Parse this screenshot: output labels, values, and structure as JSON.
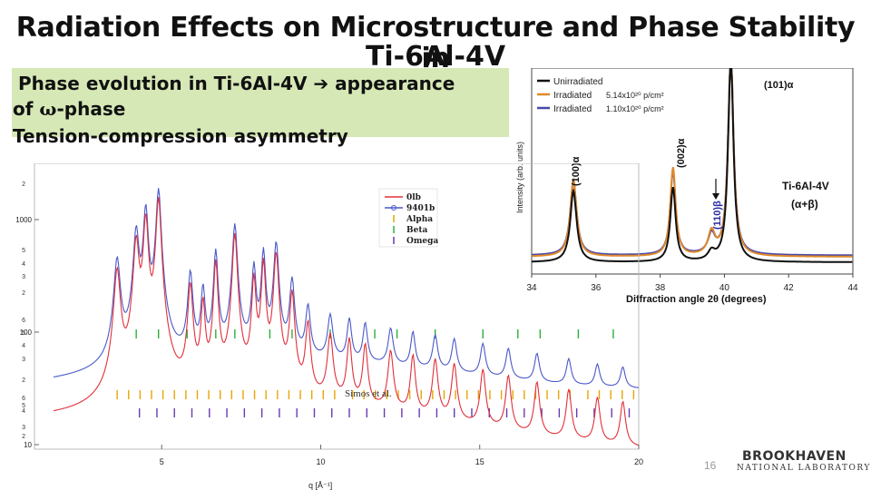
{
  "slide": {
    "title": "Radiation Effects on Microstructure and Phase Stability in",
    "title_line2": "Ti-6Al-4V",
    "callout": {
      "line1_a": "Phase evolution in Ti-6Al-4V",
      "line1_arrow": "➔",
      "line1_b": "appearance",
      "line2_a": "of",
      "line2_omega": "ω",
      "line2_b": "-phase",
      "line3": "Tension-compression asymmetry"
    },
    "page_number": "16",
    "logo_main": "BROOKHAVEN",
    "logo_sub": "NATIONAL LABORATORY",
    "colors": {
      "callout_bg": "#d6e8b6"
    }
  },
  "chart_data": [
    {
      "type": "line",
      "xlabel": "Diffraction angle 2θ (degrees)",
      "ylabel": "Intensity (arb. units)",
      "xlim": [
        34,
        44
      ],
      "x_ticks": [
        "34",
        "36",
        "38",
        "40",
        "42",
        "44"
      ],
      "legend_position": "top-left",
      "series": [
        {
          "name": "Unirradiated",
          "dose": "",
          "color": "#111111"
        },
        {
          "name": "Irradiated",
          "dose": "5.14x10²⁰ p/cm²",
          "color": "#e08a2c"
        },
        {
          "name": "Irradiated",
          "dose": "1.10x10²⁰ p/cm²",
          "color": "#4a48a8"
        }
      ],
      "peaks": [
        {
          "label": "(100)α",
          "x": 35.3
        },
        {
          "label": "(002)α",
          "x": 38.4
        },
        {
          "label": "(110)β",
          "x": 39.6
        },
        {
          "label": "(101)α",
          "x": 40.2
        }
      ],
      "annotations": [
        "Ti-6Al-4V",
        "(α+β)"
      ]
    },
    {
      "type": "line",
      "xlabel": "q [Å⁻¹]",
      "ylabel": "",
      "xlim": [
        1,
        20
      ],
      "x_ticks": [
        "5",
        "10",
        "15",
        "20"
      ],
      "y_scale": "log",
      "y_ticks": [
        "1000",
        "100",
        "10"
      ],
      "y_minor_ticks": [
        "2",
        "5",
        "4",
        "3",
        "2",
        "6",
        "5",
        "4",
        "3",
        "2",
        "6",
        "5",
        "4",
        "3",
        "2"
      ],
      "legend_position": "top-center",
      "legend": [
        {
          "name": "0lb",
          "color": "#e0303a"
        },
        {
          "name": "9401b",
          "color": "#4a58c8"
        },
        {
          "name": "Alpha",
          "color": "#e8a400"
        },
        {
          "name": "Beta",
          "color": "#2fae3a"
        },
        {
          "name": "Omega",
          "color": "#6a3ab0"
        }
      ],
      "annotation": "Simos et al."
    }
  ]
}
